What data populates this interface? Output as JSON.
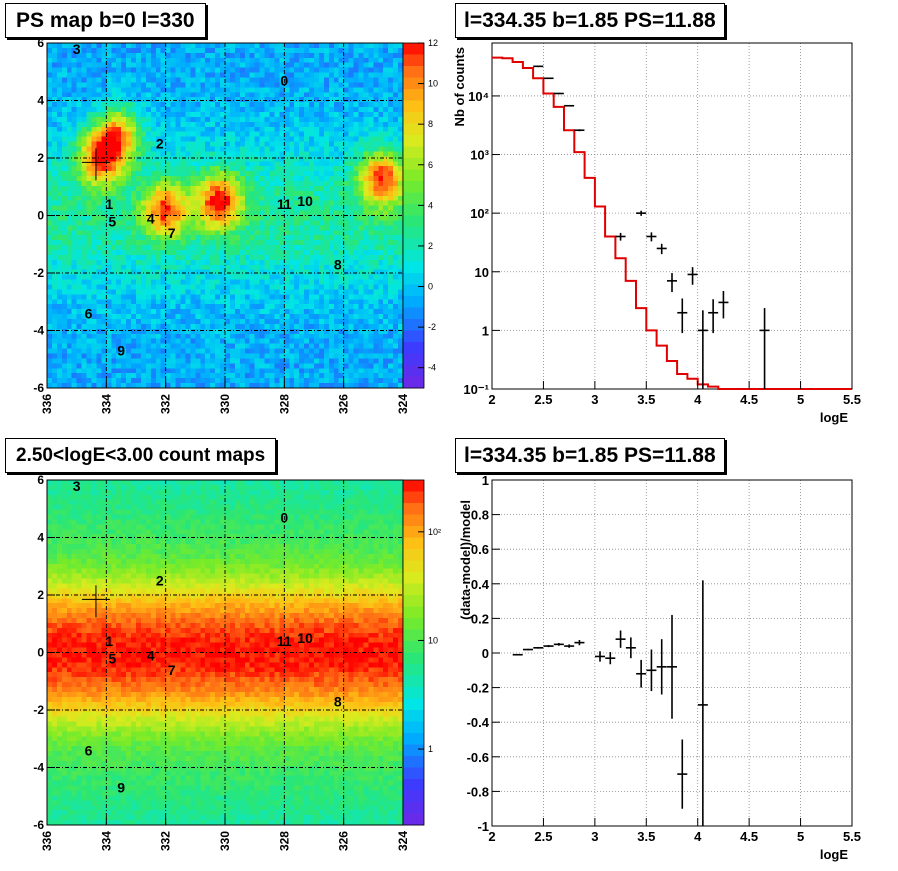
{
  "panels": {
    "ps_map": {
      "title": "PS map b=0 l=330",
      "colorbar_ticks": [
        "12",
        "10",
        "8",
        "6",
        "4",
        "2",
        "0",
        "-2",
        "-4"
      ],
      "colorbar_values": [
        12,
        10,
        8,
        6,
        4,
        2,
        0,
        -2,
        -4
      ],
      "colorbar_range": [
        -5,
        12
      ]
    },
    "spectrum": {
      "title": "l=334.35 b=1.85 PS=11.88",
      "xlabel": "logE",
      "ylabel": "Nb of counts"
    },
    "count_map": {
      "title": "2.50<logE<3.00 count maps",
      "colorbar_ticks": [
        "10²",
        "10",
        "1"
      ]
    },
    "residual": {
      "title": "l=334.35 b=1.85 PS=11.88",
      "xlabel": "logE",
      "ylabel": "(data-model)/model"
    }
  },
  "map_axes": {
    "x_ticks": [
      "336",
      "334",
      "332",
      "330",
      "328",
      "326",
      "324"
    ],
    "y_ticks": [
      "6",
      "4",
      "2",
      "0",
      "-2",
      "-4",
      "-6"
    ],
    "x_range": [
      336,
      324
    ],
    "y_range": [
      -6,
      6
    ]
  },
  "sources": [
    {
      "label": "0",
      "l": 328.0,
      "b": 4.7
    },
    {
      "label": "1",
      "l": 333.9,
      "b": 0.4
    },
    {
      "label": "2",
      "l": 332.2,
      "b": 2.5
    },
    {
      "label": "3",
      "l": 335.0,
      "b": 5.8
    },
    {
      "label": "4",
      "l": 332.5,
      "b": -0.1
    },
    {
      "label": "5",
      "l": 333.8,
      "b": -0.2
    },
    {
      "label": "6",
      "l": 334.6,
      "b": -3.4
    },
    {
      "label": "7",
      "l": 331.8,
      "b": -0.6
    },
    {
      "label": "8",
      "l": 326.2,
      "b": -1.7
    },
    {
      "label": "9",
      "l": 333.5,
      "b": -4.7
    },
    {
      "label": "11",
      "l": 328.0,
      "b": 0.4
    },
    {
      "label": "10",
      "l": 327.3,
      "b": 0.5
    }
  ],
  "marker": {
    "l": 334.35,
    "b": 1.85
  },
  "chart_data": [
    {
      "type": "heatmap",
      "title": "PS map b=0 l=330",
      "xlim": [
        336,
        324
      ],
      "ylim": [
        -6,
        6
      ],
      "zlim": [
        -5,
        12
      ],
      "hotspots": [
        {
          "l": 334.2,
          "b": 2.0,
          "peak": 10
        },
        {
          "l": 333.6,
          "b": 2.8,
          "peak": 9
        },
        {
          "l": 332.0,
          "b": 0.2,
          "peak": 9
        },
        {
          "l": 330.2,
          "b": 0.5,
          "peak": 10
        },
        {
          "l": 324.7,
          "b": 1.3,
          "peak": 10
        }
      ]
    },
    {
      "type": "line",
      "title": "l=334.35 b=1.85 PS=11.88",
      "xlabel": "logE",
      "ylabel": "Nb of counts",
      "xlim": [
        2,
        5.5
      ],
      "ylim": [
        0.1,
        80000
      ],
      "yscale": "log",
      "x_ticks": [
        "2",
        "2.5",
        "3",
        "3.5",
        "4",
        "4.5",
        "5",
        "5.5"
      ],
      "y_ticks": [
        "10⁴",
        "10³",
        "10²",
        "10",
        "1",
        "10⁻¹"
      ],
      "y_tick_values": [
        10000,
        1000,
        100,
        10,
        1,
        0.1
      ],
      "model": {
        "name": "model",
        "edges": [
          2,
          2.1,
          2.2,
          2.3,
          2.4,
          2.5,
          2.6,
          2.7,
          2.8,
          2.9,
          3.0,
          3.1,
          3.2,
          3.3,
          3.4,
          3.5,
          3.6,
          3.7,
          3.8,
          3.9,
          4.0,
          4.1,
          4.2,
          4.3,
          4.4,
          4.5,
          5.5
        ],
        "values": [
          45000,
          44000,
          38000,
          30000,
          20000,
          11000,
          6500,
          2600,
          1100,
          400,
          130,
          40,
          17,
          7,
          2.4,
          1,
          0.55,
          0.3,
          0.18,
          0.15,
          0.12,
          0.11,
          0.1,
          0.1,
          0.1,
          0.1
        ]
      },
      "data": {
        "name": "data",
        "points": [
          {
            "x": 2.45,
            "y": 32000,
            "lo": 31000,
            "hi": 33000
          },
          {
            "x": 2.55,
            "y": 20000,
            "lo": 19500,
            "hi": 20500
          },
          {
            "x": 2.65,
            "y": 11000,
            "lo": 10700,
            "hi": 11300
          },
          {
            "x": 2.75,
            "y": 6800,
            "lo": 6600,
            "hi": 7000
          },
          {
            "x": 2.85,
            "y": 2600,
            "lo": 2500,
            "hi": 2700
          },
          {
            "x": 3.25,
            "y": 40,
            "lo": 34,
            "hi": 46
          },
          {
            "x": 3.45,
            "y": 100,
            "lo": 90,
            "hi": 110
          },
          {
            "x": 3.55,
            "y": 40,
            "lo": 33,
            "hi": 47
          },
          {
            "x": 3.65,
            "y": 25,
            "lo": 20,
            "hi": 30
          },
          {
            "x": 3.75,
            "y": 7,
            "lo": 4.5,
            "hi": 9.5
          },
          {
            "x": 3.85,
            "y": 2,
            "lo": 0.9,
            "hi": 3.5
          },
          {
            "x": 3.95,
            "y": 9,
            "lo": 6,
            "hi": 12
          },
          {
            "x": 4.05,
            "y": 1,
            "lo": 0.1,
            "hi": 2.2
          },
          {
            "x": 4.15,
            "y": 2,
            "lo": 0.9,
            "hi": 3.4
          },
          {
            "x": 4.25,
            "y": 3,
            "lo": 1.6,
            "hi": 4.7
          },
          {
            "x": 4.65,
            "y": 1,
            "lo": 0.1,
            "hi": 2.4
          }
        ]
      }
    },
    {
      "type": "heatmap",
      "title": "2.50<logE<3.00 count maps",
      "xlim": [
        336,
        324
      ],
      "ylim": [
        -6,
        6
      ],
      "zscale": "log",
      "zlim": [
        0.2,
        300
      ]
    },
    {
      "type": "scatter",
      "title": "l=334.35 b=1.85 PS=11.88",
      "xlabel": "logE",
      "ylabel": "(data-model)/model",
      "xlim": [
        2,
        5.5
      ],
      "ylim": [
        -1,
        1
      ],
      "x_ticks": [
        "2",
        "2.5",
        "3",
        "3.5",
        "4",
        "4.5",
        "5",
        "5.5"
      ],
      "y_ticks": [
        "1",
        "0.8",
        "0.6",
        "0.4",
        "0.2",
        "0",
        "-0.2",
        "-0.4",
        "-0.6",
        "-0.8",
        "-1"
      ],
      "y_tick_values": [
        1,
        0.8,
        0.6,
        0.4,
        0.2,
        0,
        -0.2,
        -0.4,
        -0.6,
        -0.8,
        -1
      ],
      "points": [
        {
          "x": 2.25,
          "y": -0.01,
          "err": 0.004
        },
        {
          "x": 2.35,
          "y": 0.02,
          "err": 0.004
        },
        {
          "x": 2.45,
          "y": 0.03,
          "err": 0.005
        },
        {
          "x": 2.55,
          "y": 0.04,
          "err": 0.006
        },
        {
          "x": 2.65,
          "y": 0.05,
          "err": 0.008
        },
        {
          "x": 2.75,
          "y": 0.04,
          "err": 0.01
        },
        {
          "x": 2.85,
          "y": 0.06,
          "err": 0.015
        },
        {
          "x": 3.05,
          "y": -0.02,
          "err": 0.03
        },
        {
          "x": 3.15,
          "y": -0.03,
          "err": 0.035
        },
        {
          "x": 3.25,
          "y": 0.08,
          "err": 0.05
        },
        {
          "x": 3.35,
          "y": 0.03,
          "err": 0.06
        },
        {
          "x": 3.45,
          "y": -0.12,
          "err": 0.08
        },
        {
          "x": 3.55,
          "y": -0.1,
          "err": 0.12
        },
        {
          "x": 3.65,
          "y": -0.08,
          "err": 0.16
        },
        {
          "x": 3.75,
          "y": -0.08,
          "err": 0.3
        },
        {
          "x": 3.85,
          "y": -0.7,
          "err": 0.2
        },
        {
          "x": 4.05,
          "y": -0.3,
          "err": 0.72
        }
      ]
    }
  ]
}
